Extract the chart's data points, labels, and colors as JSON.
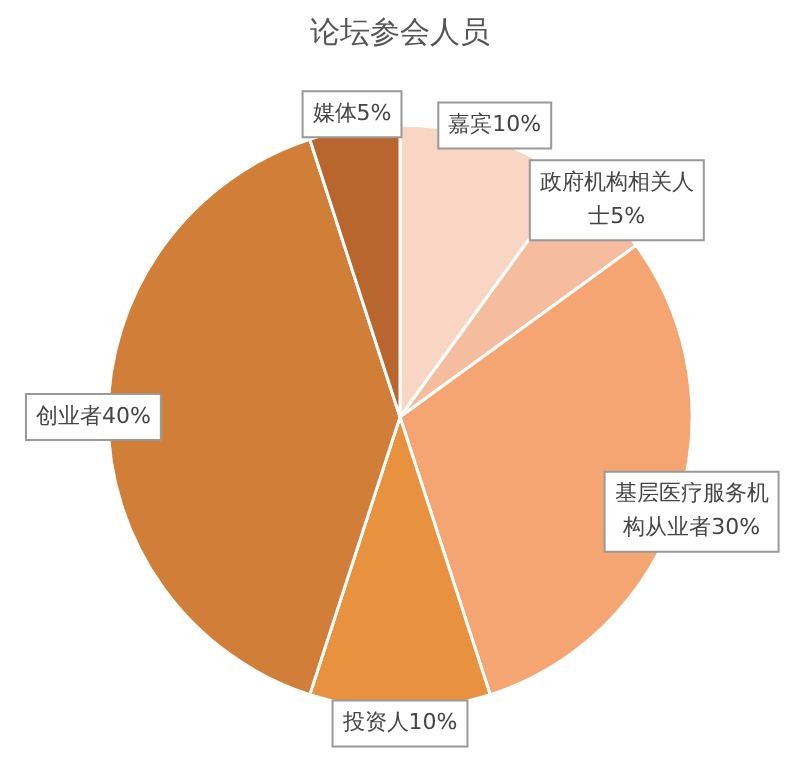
{
  "chart_data": {
    "type": "pie",
    "title": "论坛参会人员",
    "categories": [
      "嘉宾",
      "政府机构相关人士",
      "基层医疗服务机构从业者",
      "投资人",
      "创业者",
      "媒体"
    ],
    "values": [
      10,
      5,
      30,
      10,
      40,
      5
    ],
    "value_labels": [
      "10%",
      "5%",
      "30%",
      "10%",
      "40%",
      "5%"
    ],
    "colors": [
      "#f9d5c3",
      "#f6bc9e",
      "#f4a572",
      "#e8913e",
      "#d17e38",
      "#b8662d"
    ],
    "legend": false
  }
}
